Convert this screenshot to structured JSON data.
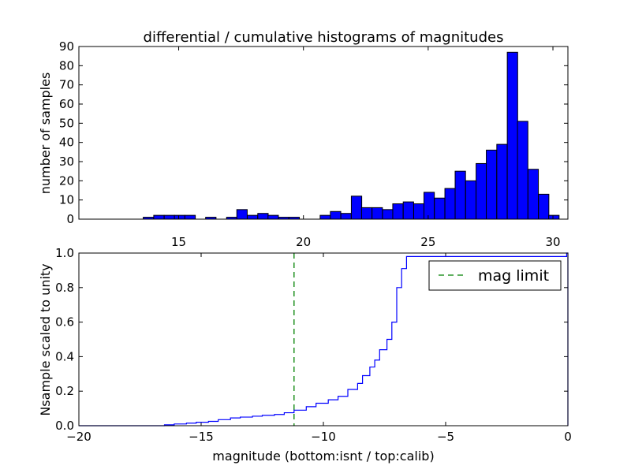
{
  "chart_data": [
    {
      "type": "bar",
      "title": "differential / cumulative histograms of magnitudes",
      "xlabel": "",
      "ylabel": "number of samples",
      "xlim": [
        11.0,
        30.6
      ],
      "ylim": [
        0,
        90
      ],
      "xticks": [
        15,
        20,
        25,
        30
      ],
      "yticks": [
        0,
        10,
        20,
        30,
        40,
        50,
        60,
        70,
        80,
        90
      ],
      "bar_color": "#0000ff",
      "bin_width": 0.4167,
      "bins": [
        {
          "x0": 13.58,
          "count": 1
        },
        {
          "x0": 14.0,
          "count": 2
        },
        {
          "x0": 14.42,
          "count": 2
        },
        {
          "x0": 14.83,
          "count": 2
        },
        {
          "x0": 15.25,
          "count": 2
        },
        {
          "x0": 16.08,
          "count": 1
        },
        {
          "x0": 16.92,
          "count": 1
        },
        {
          "x0": 17.33,
          "count": 5
        },
        {
          "x0": 17.75,
          "count": 2
        },
        {
          "x0": 18.17,
          "count": 3
        },
        {
          "x0": 18.58,
          "count": 2
        },
        {
          "x0": 19.0,
          "count": 1
        },
        {
          "x0": 19.42,
          "count": 1
        },
        {
          "x0": 20.67,
          "count": 2
        },
        {
          "x0": 21.08,
          "count": 4
        },
        {
          "x0": 21.5,
          "count": 3
        },
        {
          "x0": 21.92,
          "count": 12
        },
        {
          "x0": 22.33,
          "count": 6
        },
        {
          "x0": 22.75,
          "count": 6
        },
        {
          "x0": 23.17,
          "count": 5
        },
        {
          "x0": 23.58,
          "count": 8
        },
        {
          "x0": 24.0,
          "count": 9
        },
        {
          "x0": 24.42,
          "count": 8
        },
        {
          "x0": 24.83,
          "count": 14
        },
        {
          "x0": 25.25,
          "count": 11
        },
        {
          "x0": 25.67,
          "count": 16
        },
        {
          "x0": 26.08,
          "count": 25
        },
        {
          "x0": 26.5,
          "count": 20
        },
        {
          "x0": 26.92,
          "count": 29
        },
        {
          "x0": 27.33,
          "count": 36
        },
        {
          "x0": 27.75,
          "count": 39
        },
        {
          "x0": 28.17,
          "count": 87
        },
        {
          "x0": 28.58,
          "count": 51
        },
        {
          "x0": 29.0,
          "count": 26
        },
        {
          "x0": 29.42,
          "count": 13
        },
        {
          "x0": 29.83,
          "count": 2
        }
      ]
    },
    {
      "type": "line",
      "subtype": "step",
      "title": "",
      "xlabel": "magnitude (bottom:isnt / top:calib)",
      "ylabel": "Nsample scaled to unity",
      "xlim": [
        -20,
        0
      ],
      "ylim": [
        0,
        1.0
      ],
      "xticks": [
        -20,
        -15,
        -10,
        -5,
        0
      ],
      "yticks": [
        0.0,
        0.2,
        0.4,
        0.6,
        0.8,
        1.0
      ],
      "grid": false,
      "legend_position": "top-right",
      "series": [
        {
          "name": "",
          "color": "#0000ff",
          "x": [
            -20,
            -16.5,
            -16.1,
            -15.6,
            -15.2,
            -14.7,
            -14.3,
            -13.8,
            -13.4,
            -12.9,
            -12.5,
            -12.0,
            -11.6,
            -11.2,
            -10.7,
            -10.3,
            -9.8,
            -9.4,
            -9.0,
            -8.6,
            -8.4,
            -8.1,
            -7.9,
            -7.7,
            -7.4,
            -7.2,
            -7.0,
            -6.8,
            -6.6,
            -0.05
          ],
          "y": [
            0.0,
            0.005,
            0.01,
            0.015,
            0.02,
            0.025,
            0.035,
            0.045,
            0.05,
            0.055,
            0.06,
            0.065,
            0.075,
            0.09,
            0.11,
            0.13,
            0.15,
            0.17,
            0.21,
            0.245,
            0.29,
            0.34,
            0.38,
            0.44,
            0.5,
            0.6,
            0.8,
            0.91,
            0.98,
            1.0
          ]
        },
        {
          "name": "mag limit",
          "color": "#008000",
          "style": "dashed",
          "vertical_x": -11.2
        }
      ]
    }
  ]
}
